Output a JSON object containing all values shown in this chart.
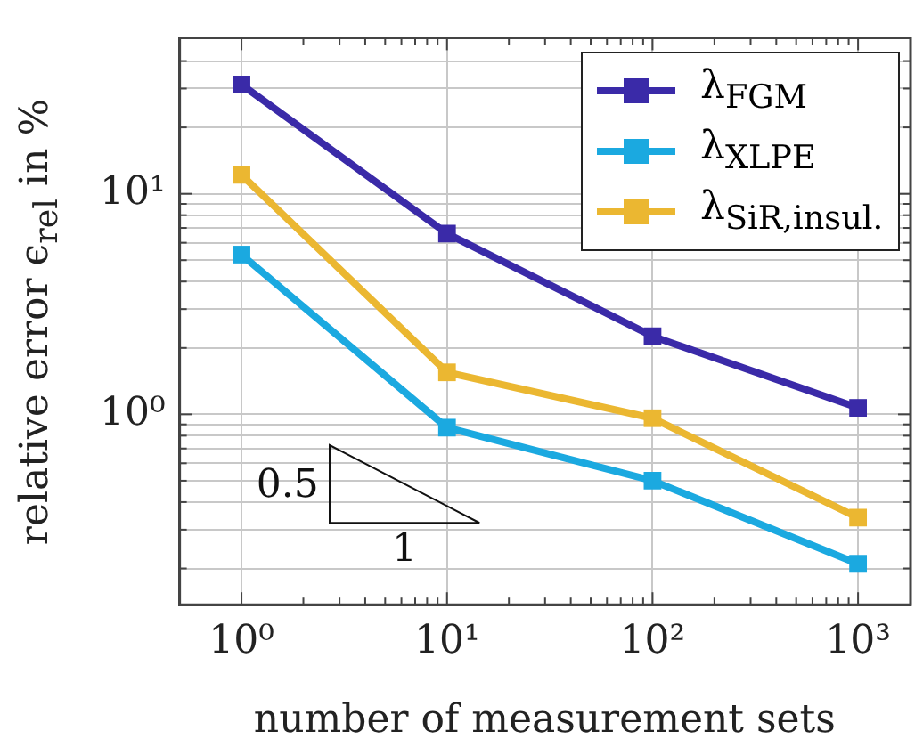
{
  "chart_data": {
    "type": "line",
    "xlabel": "number of measurement sets",
    "ylabel": "relative error ϵ$_{rel}$ in %",
    "x": [
      1,
      10,
      100,
      1000
    ],
    "series": [
      {
        "name": "λ$_{FGM}$",
        "color": "#3a2aa8",
        "values": [
          31.3,
          6.6,
          2.26,
          1.07
        ]
      },
      {
        "name": "λ$_{XLPE}$",
        "color": "#1ba9e0",
        "values": [
          5.3,
          0.87,
          0.5,
          0.21
        ]
      },
      {
        "name": "λ$_{SiR,insul.}$",
        "color": "#ebb731",
        "values": [
          12.2,
          1.55,
          0.96,
          0.34
        ]
      }
    ],
    "log": "xy",
    "xlim": [
      0.5,
      1800
    ],
    "ylim": [
      0.137,
      51
    ],
    "xticks": [
      {
        "value": 1,
        "label": "10⁰"
      },
      {
        "value": 2,
        "label": null
      },
      {
        "value": 3,
        "label": null
      },
      {
        "value": 4,
        "label": null
      },
      {
        "value": 5,
        "label": null
      },
      {
        "value": 6,
        "label": null
      },
      {
        "value": 7,
        "label": null
      },
      {
        "value": 8,
        "label": null
      },
      {
        "value": 9,
        "label": null
      },
      {
        "value": 10,
        "label": "10¹"
      },
      {
        "value": 20,
        "label": null
      },
      {
        "value": 30,
        "label": null
      },
      {
        "value": 40,
        "label": null
      },
      {
        "value": 50,
        "label": null
      },
      {
        "value": 60,
        "label": null
      },
      {
        "value": 70,
        "label": null
      },
      {
        "value": 80,
        "label": null
      },
      {
        "value": 90,
        "label": null
      },
      {
        "value": 100,
        "label": "10²"
      },
      {
        "value": 200,
        "label": null
      },
      {
        "value": 300,
        "label": null
      },
      {
        "value": 400,
        "label": null
      },
      {
        "value": 500,
        "label": null
      },
      {
        "value": 600,
        "label": null
      },
      {
        "value": 700,
        "label": null
      },
      {
        "value": 800,
        "label": null
      },
      {
        "value": 900,
        "label": null
      },
      {
        "value": 1000,
        "label": "10³"
      }
    ],
    "yticks": [
      {
        "value": 0.2,
        "label": null
      },
      {
        "value": 0.3,
        "label": null
      },
      {
        "value": 0.4,
        "label": null
      },
      {
        "value": 0.5,
        "label": null
      },
      {
        "value": 0.6,
        "label": null
      },
      {
        "value": 0.7,
        "label": null
      },
      {
        "value": 0.8,
        "label": null
      },
      {
        "value": 0.9,
        "label": null
      },
      {
        "value": 1,
        "label": "10⁰"
      },
      {
        "value": 2,
        "label": null
      },
      {
        "value": 3,
        "label": null
      },
      {
        "value": 4,
        "label": null
      },
      {
        "value": 5,
        "label": null
      },
      {
        "value": 6,
        "label": null
      },
      {
        "value": 7,
        "label": null
      },
      {
        "value": 8,
        "label": null
      },
      {
        "value": 9,
        "label": null
      },
      {
        "value": 10,
        "label": "10¹"
      },
      {
        "value": 20,
        "label": null
      },
      {
        "value": 30,
        "label": null
      },
      {
        "value": 40,
        "label": null
      }
    ],
    "grid": true,
    "legend": "top right",
    "marker": "square",
    "line_style": "solid",
    "annotations": [
      "0.5",
      "1"
    ]
  }
}
